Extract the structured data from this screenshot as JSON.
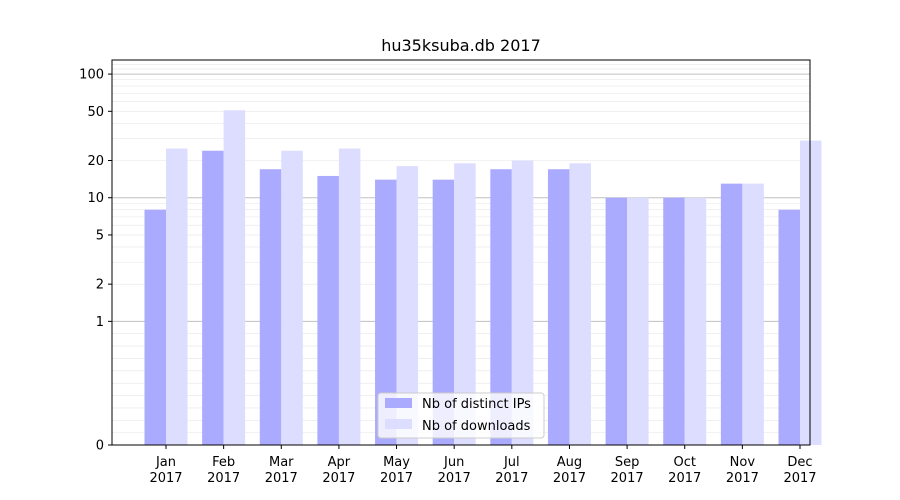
{
  "chart_data": {
    "type": "bar",
    "title": "hu35ksuba.db 2017",
    "xlabel": "",
    "ylabel": "",
    "y_scale": "symlog",
    "ylim": [
      0,
      130
    ],
    "grid": "horizontal",
    "legend_position": "bottom-center",
    "categories": [
      [
        "Jan",
        "2017"
      ],
      [
        "Feb",
        "2017"
      ],
      [
        "Mar",
        "2017"
      ],
      [
        "Apr",
        "2017"
      ],
      [
        "May",
        "2017"
      ],
      [
        "Jun",
        "2017"
      ],
      [
        "Jul",
        "2017"
      ],
      [
        "Aug",
        "2017"
      ],
      [
        "Sep",
        "2017"
      ],
      [
        "Oct",
        "2017"
      ],
      [
        "Nov",
        "2017"
      ],
      [
        "Dec",
        "2017"
      ]
    ],
    "y_ticks": [
      0,
      1,
      2,
      5,
      10,
      20,
      50,
      100
    ],
    "series": [
      {
        "name": "Nb of distinct IPs",
        "color": "#aaaaff",
        "values": [
          8,
          24,
          17,
          15,
          14,
          14,
          17,
          17,
          10,
          10,
          13,
          8
        ]
      },
      {
        "name": "Nb of downloads",
        "color": "#ddddff",
        "values": [
          25,
          51,
          24,
          25,
          18,
          19,
          20,
          19,
          10,
          10,
          13,
          29
        ]
      }
    ]
  }
}
